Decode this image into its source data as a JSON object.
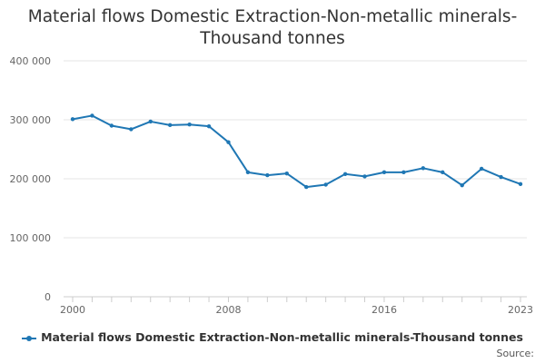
{
  "chart_data": {
    "type": "line",
    "title": "Material flows Domestic Extraction-Non-metallic minerals-Thousand tonnes",
    "title_lines": [
      "Material flows Domestic Extraction-Non-metallic minerals-",
      "Thousand tonnes"
    ],
    "xlabel": "",
    "ylabel": "",
    "x": [
      2000,
      2001,
      2002,
      2003,
      2004,
      2005,
      2006,
      2007,
      2008,
      2009,
      2010,
      2011,
      2012,
      2013,
      2014,
      2015,
      2016,
      2017,
      2018,
      2019,
      2020,
      2021,
      2022,
      2023
    ],
    "series": [
      {
        "name": "Material flows Domestic Extraction-Non-metallic minerals-Thousand tonnes",
        "color": "#1f77b4",
        "values": [
          301000,
          307000,
          290000,
          284000,
          297000,
          291000,
          292000,
          289000,
          262000,
          211000,
          206000,
          209000,
          186000,
          190000,
          208000,
          204000,
          211000,
          211000,
          218000,
          211000,
          189000,
          217000,
          203000,
          191000
        ]
      }
    ],
    "ylim": [
      0,
      400000
    ],
    "yticks": [
      0,
      100000,
      200000,
      300000,
      400000
    ],
    "ytick_labels": [
      "0",
      "100 000",
      "200 000",
      "300 000",
      "400 000"
    ],
    "xlim": [
      2000,
      2023
    ],
    "xticks": [
      2000,
      2008,
      2016,
      2023
    ],
    "xtick_labels": [
      "2000",
      "2008",
      "2016",
      "2023"
    ],
    "grid": true,
    "legend": "bottom-center"
  },
  "source_label": "Source:"
}
